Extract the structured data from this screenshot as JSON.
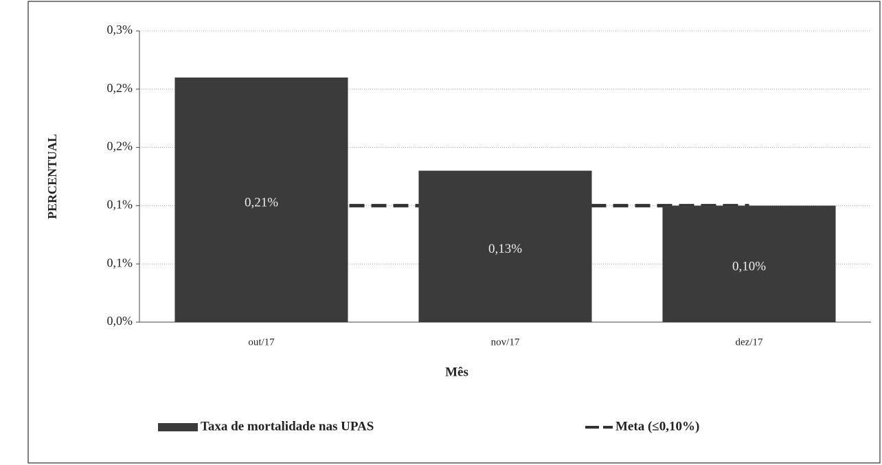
{
  "chart_data": {
    "type": "bar",
    "categories": [
      "out/17",
      "nov/17",
      "dez/17"
    ],
    "series": [
      {
        "name": "Taxa de mortalidade nas UPAS",
        "type": "bar",
        "color": "#3b3b3b",
        "values": [
          0.21,
          0.13,
          0.1
        ],
        "value_labels": [
          "0,21%",
          "0,13%",
          "0,10%"
        ]
      },
      {
        "name": "Meta (≤0,10%)",
        "type": "line",
        "color": "#333333",
        "values": [
          0.1,
          0.1,
          0.1
        ]
      }
    ],
    "ylim": [
      0,
      0.25
    ],
    "yticks": [
      {
        "value": 0,
        "label": "0,0%"
      },
      {
        "value": 0.05,
        "label": "0,1%"
      },
      {
        "value": 0.1,
        "label": "0,1%"
      },
      {
        "value": 0.15,
        "label": "0,2%"
      },
      {
        "value": 0.2,
        "label": "0,2%"
      },
      {
        "value": 0.25,
        "label": "0,3%"
      }
    ],
    "ylabel": "PERCENTUAL",
    "xlabel": "Mês",
    "grid": true,
    "legend": "bottom"
  }
}
